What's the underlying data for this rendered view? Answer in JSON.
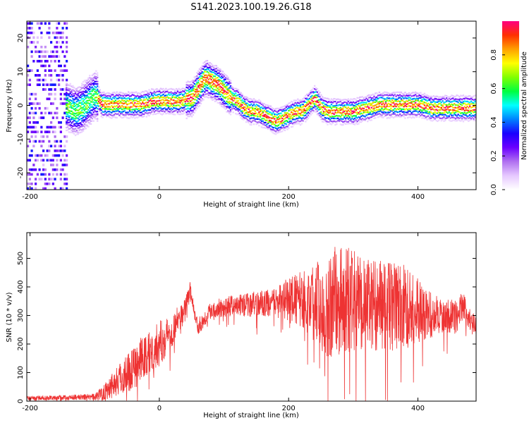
{
  "figure_title": "S141.2023.100.19.26.G18",
  "chart_data": [
    {
      "type": "heatmap",
      "xlabel": "Height of straight line (km)",
      "ylabel": "Frequency (Hz)",
      "xlim": [
        -205,
        490
      ],
      "ylim": [
        -25,
        25
      ],
      "xticks": [
        -200,
        0,
        200,
        400
      ],
      "yticks": [
        -20,
        -10,
        0,
        10,
        20
      ],
      "grid": false,
      "colorbar": {
        "label": "Normalized spectral amplitude",
        "range": [
          0,
          1
        ],
        "ticks": [
          "0.0",
          "0.2",
          "0.4",
          "0.6",
          "0.8"
        ],
        "colors": [
          "#ffffff",
          "#e6c8ff",
          "#b070f0",
          "#6a00ff",
          "#1a00ff",
          "#0080ff",
          "#00ffff",
          "#00ff40",
          "#80ff00",
          "#ffff00",
          "#ffa000",
          "#ff3000",
          "#ff0080"
        ]
      },
      "ridge": {
        "x": [
          -150,
          -140,
          -130,
          -120,
          -110,
          -100,
          -90,
          -70,
          -50,
          -30,
          -10,
          10,
          30,
          50,
          60,
          70,
          80,
          90,
          100,
          110,
          120,
          130,
          140,
          150,
          160,
          170,
          180,
          190,
          200,
          210,
          220,
          230,
          240,
          250,
          260,
          280,
          300,
          320,
          340,
          360,
          380,
          400,
          420,
          440,
          460,
          490
        ],
        "y": [
          0,
          -1,
          -2,
          -1,
          1,
          3,
          0,
          0,
          0,
          0,
          1,
          1,
          1,
          2,
          5,
          8,
          7,
          6,
          4,
          2,
          1,
          -1,
          -2,
          -2,
          -3,
          -4,
          -5,
          -4,
          -3,
          -2,
          -2,
          0,
          2,
          -1,
          -2,
          -2,
          -2,
          -1,
          0,
          0,
          0,
          0,
          -1,
          -1,
          -1,
          -1
        ]
      },
      "noise_region_x": [
        -205,
        -145
      ]
    },
    {
      "type": "line",
      "xlabel": "Height of straight line (km)",
      "ylabel": "SNR (10 * v/v)",
      "xlim": [
        -205,
        490
      ],
      "ylim": [
        0,
        590
      ],
      "xticks": [
        -200,
        0,
        200,
        400
      ],
      "yticks": [
        0,
        100,
        200,
        300,
        400,
        500
      ],
      "grid": false,
      "color": "#ee3333",
      "series": [
        {
          "x": [
            -205,
            -160,
            -120,
            -100,
            -90,
            -80,
            -60,
            -40,
            -20,
            0,
            20,
            40,
            47,
            55,
            60,
            80,
            100,
            120,
            150,
            180,
            200,
            220,
            240,
            260,
            270,
            280,
            300,
            320,
            340,
            360,
            380,
            400,
            420,
            440,
            460,
            470,
            480,
            490
          ],
          "y": [
            10,
            12,
            14,
            15,
            25,
            45,
            80,
            120,
            160,
            200,
            250,
            320,
            405,
            300,
            260,
            320,
            330,
            335,
            340,
            345,
            355,
            355,
            350,
            340,
            345,
            355,
            350,
            340,
            335,
            330,
            330,
            320,
            300,
            300,
            295,
            340,
            285,
            265
          ],
          "amplitude": [
            8,
            8,
            10,
            12,
            25,
            40,
            60,
            80,
            80,
            80,
            60,
            40,
            20,
            20,
            30,
            30,
            35,
            40,
            45,
            50,
            80,
            100,
            140,
            200,
            200,
            200,
            180,
            160,
            160,
            160,
            150,
            120,
            80,
            60,
            60,
            50,
            40,
            30
          ]
        }
      ]
    }
  ]
}
